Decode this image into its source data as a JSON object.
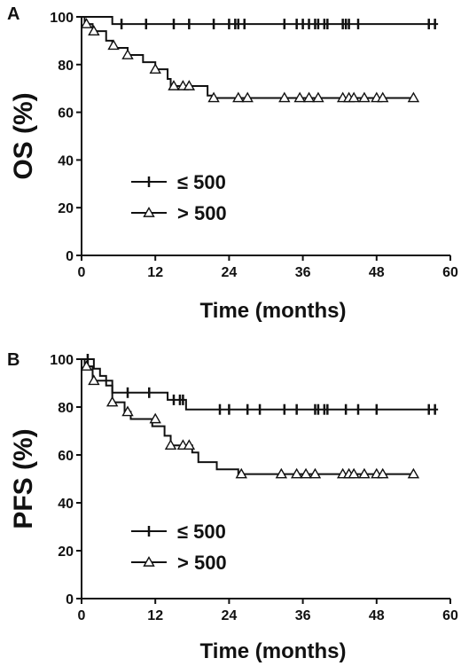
{
  "chart_data": [
    {
      "type": "line",
      "panel": "A",
      "xlabel": "Time (months)",
      "ylabel": "OS (%)",
      "xlim": [
        0,
        60
      ],
      "ylim": [
        0,
        100
      ],
      "xticks": [
        "0",
        "12",
        "24",
        "36",
        "48",
        "60"
      ],
      "yticks": [
        "0",
        "20",
        "40",
        "60",
        "80",
        "100"
      ],
      "legend_position": "lower-left",
      "series": [
        {
          "name": "≤ 500",
          "marker": "plus",
          "steps": [
            [
              0,
              100
            ],
            [
              5,
              97
            ],
            [
              58,
              97
            ]
          ],
          "censored": [
            [
              6.5,
              97
            ],
            [
              10.5,
              97
            ],
            [
              15,
              97
            ],
            [
              17.5,
              97
            ],
            [
              21.5,
              97
            ],
            [
              24,
              97
            ],
            [
              25,
              97
            ],
            [
              25.5,
              97
            ],
            [
              26.5,
              97
            ],
            [
              33,
              97
            ],
            [
              35,
              97
            ],
            [
              36,
              97
            ],
            [
              37,
              97
            ],
            [
              38,
              97
            ],
            [
              38.5,
              97
            ],
            [
              39.5,
              97
            ],
            [
              40,
              97
            ],
            [
              42.5,
              97
            ],
            [
              43,
              97
            ],
            [
              43.5,
              97
            ],
            [
              45,
              97
            ],
            [
              56.5,
              97
            ],
            [
              57.5,
              97
            ]
          ]
        },
        {
          "name": "> 500",
          "marker": "triangle",
          "steps": [
            [
              0,
              100
            ],
            [
              0.5,
              97
            ],
            [
              1.8,
              94
            ],
            [
              4,
              90
            ],
            [
              5,
              87
            ],
            [
              7.5,
              84
            ],
            [
              10,
              81
            ],
            [
              12,
              78
            ],
            [
              14,
              74
            ],
            [
              14.5,
              71
            ],
            [
              20.5,
              67
            ],
            [
              21.5,
              66
            ],
            [
              54,
              66
            ]
          ],
          "censored": [
            [
              0.8,
              97
            ],
            [
              2,
              94
            ],
            [
              5.2,
              88
            ],
            [
              7.5,
              84
            ],
            [
              12,
              78
            ],
            [
              15,
              71
            ],
            [
              16.5,
              71
            ],
            [
              17.5,
              71
            ],
            [
              21.5,
              66
            ],
            [
              25.5,
              66
            ],
            [
              27,
              66
            ],
            [
              33,
              66
            ],
            [
              35.5,
              66
            ],
            [
              37,
              66
            ],
            [
              38.5,
              66
            ],
            [
              42.5,
              66
            ],
            [
              43.5,
              66
            ],
            [
              44.3,
              66
            ],
            [
              46,
              66
            ],
            [
              48,
              66
            ],
            [
              49,
              66
            ],
            [
              54,
              66
            ]
          ]
        }
      ]
    },
    {
      "type": "line",
      "panel": "B",
      "xlabel": "Time (months)",
      "ylabel": "PFS (%)",
      "xlim": [
        0,
        60
      ],
      "ylim": [
        0,
        100
      ],
      "xticks": [
        "0",
        "12",
        "24",
        "36",
        "48",
        "60"
      ],
      "yticks": [
        "0",
        "20",
        "40",
        "60",
        "80",
        "100"
      ],
      "legend_position": "lower-left",
      "series": [
        {
          "name": "≤ 500",
          "marker": "plus",
          "steps": [
            [
              0,
              100
            ],
            [
              2,
              96
            ],
            [
              3,
              93
            ],
            [
              4,
              89
            ],
            [
              5,
              86
            ],
            [
              13.5,
              86
            ],
            [
              14,
              83
            ],
            [
              17,
              79
            ],
            [
              58,
              79
            ]
          ],
          "censored": [
            [
              1,
              100
            ],
            [
              7.5,
              86
            ],
            [
              11,
              86
            ],
            [
              15,
              83
            ],
            [
              16,
              83
            ],
            [
              16.5,
              83
            ],
            [
              22.5,
              79
            ],
            [
              24,
              79
            ],
            [
              27,
              79
            ],
            [
              29,
              79
            ],
            [
              33,
              79
            ],
            [
              35,
              79
            ],
            [
              38,
              79
            ],
            [
              38.5,
              79
            ],
            [
              39.5,
              79
            ],
            [
              40,
              79
            ],
            [
              43,
              79
            ],
            [
              45,
              79
            ],
            [
              48,
              79
            ],
            [
              56.5,
              79
            ],
            [
              57.5,
              79
            ]
          ]
        },
        {
          "name": "> 500",
          "marker": "triangle",
          "steps": [
            [
              0,
              100
            ],
            [
              0.5,
              97
            ],
            [
              1.8,
              91
            ],
            [
              5,
              82
            ],
            [
              7,
              78
            ],
            [
              8,
              75
            ],
            [
              11.5,
              72
            ],
            [
              13.5,
              68
            ],
            [
              14.5,
              64
            ],
            [
              18,
              61
            ],
            [
              19,
              57
            ],
            [
              22,
              54
            ],
            [
              25.5,
              52
            ],
            [
              54,
              52
            ]
          ],
          "censored": [
            [
              0.8,
              97
            ],
            [
              2,
              91
            ],
            [
              5,
              82
            ],
            [
              7.5,
              78
            ],
            [
              12,
              75
            ],
            [
              14.5,
              64
            ],
            [
              16.5,
              64
            ],
            [
              17.5,
              64
            ],
            [
              26,
              52
            ],
            [
              32.5,
              52
            ],
            [
              35,
              52
            ],
            [
              36.5,
              52
            ],
            [
              38,
              52
            ],
            [
              42.5,
              52
            ],
            [
              43.5,
              52
            ],
            [
              44.3,
              52
            ],
            [
              46,
              52
            ],
            [
              48,
              52
            ],
            [
              49,
              52
            ],
            [
              54,
              52
            ]
          ]
        }
      ]
    }
  ]
}
